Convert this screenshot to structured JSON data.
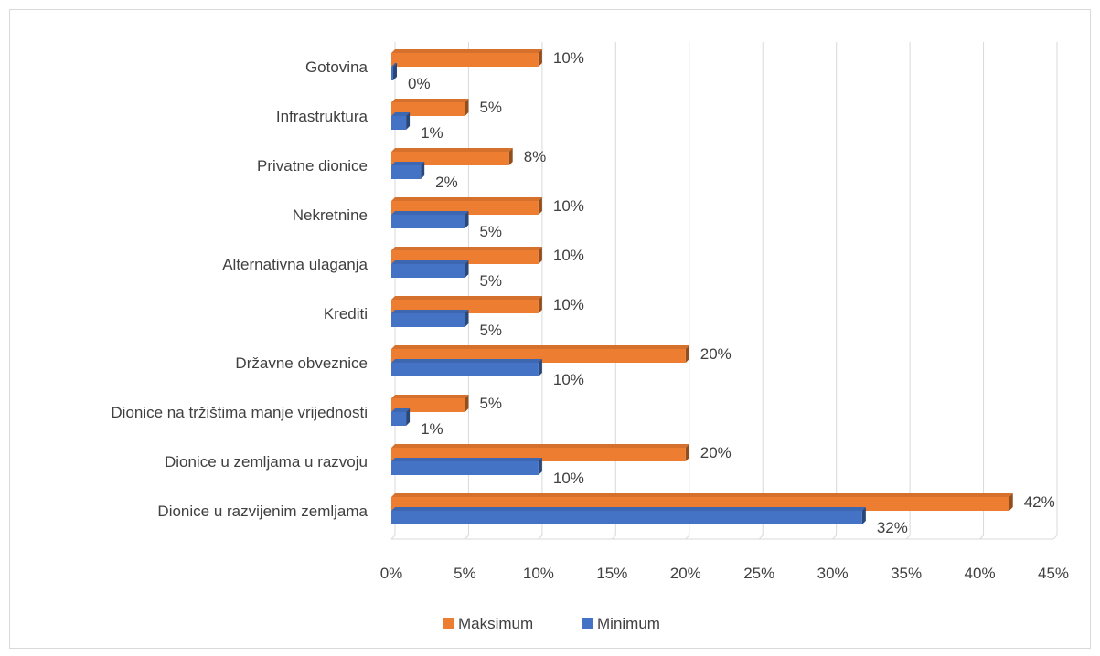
{
  "chart_data": {
    "type": "bar",
    "orientation": "horizontal",
    "title": "",
    "categories": [
      "Gotovina",
      "Infrastruktura",
      "Privatne dionice",
      "Nekretnine",
      "Alternativna ulaganja",
      "Krediti",
      "Državne obveznice",
      "Dionice na tržištima manje vrijednosti",
      "Dionice u zemljama u razvoju",
      "Dionice u razvijenim zemljama"
    ],
    "series": [
      {
        "name": "Maksimum",
        "color": "#ED7D31",
        "values": [
          10,
          5,
          8,
          10,
          10,
          10,
          20,
          5,
          20,
          42
        ],
        "labels": [
          "10%",
          "5%",
          "8%",
          "10%",
          "10%",
          "10%",
          "20%",
          "5%",
          "20%",
          "42%"
        ]
      },
      {
        "name": "Minimum",
        "color": "#4472C4",
        "values": [
          0,
          1,
          2,
          5,
          5,
          5,
          10,
          1,
          10,
          32
        ],
        "labels": [
          "0%",
          "1%",
          "2%",
          "5%",
          "5%",
          "5%",
          "10%",
          "1%",
          "10%",
          "32%"
        ]
      }
    ],
    "xlim": [
      0,
      45
    ],
    "xticks": [
      0,
      5,
      10,
      15,
      20,
      25,
      30,
      35,
      40,
      45
    ],
    "xtick_labels": [
      "0%",
      "5%",
      "10%",
      "15%",
      "20%",
      "25%",
      "30%",
      "35%",
      "40%",
      "45%"
    ],
    "grid": true,
    "legend_position": "bottom",
    "style": "3d-bars"
  }
}
